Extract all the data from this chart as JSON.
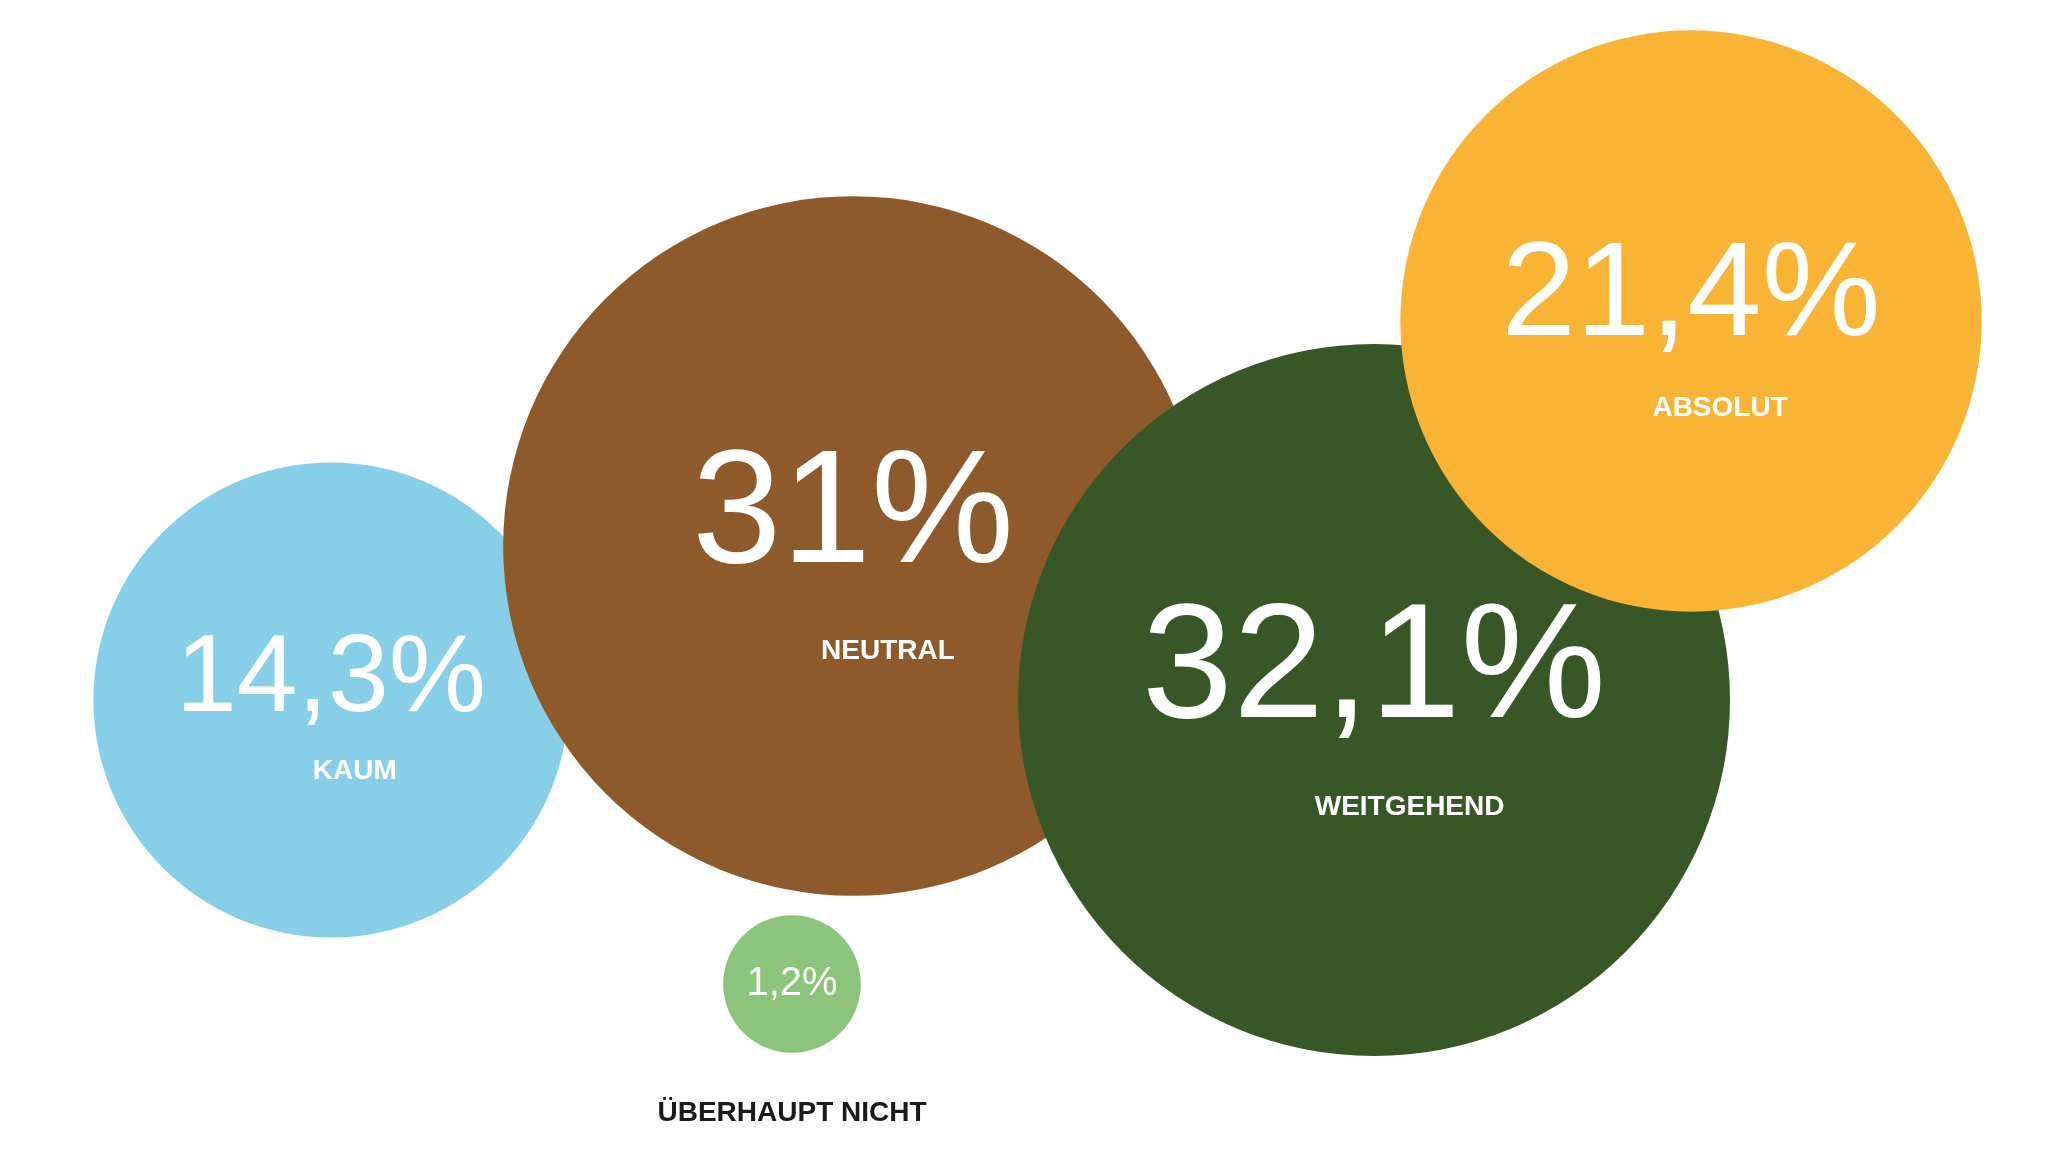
{
  "chart_data": {
    "type": "other",
    "categories": [
      "ÜBERHAUPT NICHT",
      "KAUM",
      "NEUTRAL",
      "WEITGEHEND",
      "ABSOLUT"
    ],
    "values": [
      1.2,
      14.3,
      31,
      32.1,
      21.4
    ],
    "value_labels": [
      "1,2%",
      "14,3%",
      "31%",
      "32,1%",
      "21,4%"
    ],
    "colors": [
      "#8bc47a",
      "#87cfe8",
      "#8f5a2b",
      "#385727",
      "#f9b436"
    ]
  }
}
